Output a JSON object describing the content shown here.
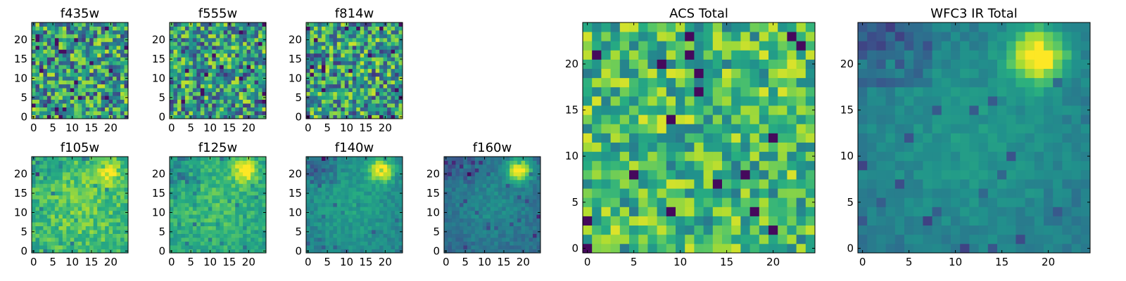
{
  "figure": {
    "description_title": ""
  },
  "chart_data": [
    {
      "type": "heatmap",
      "title": "f435w",
      "xticks": [
        "0",
        "5",
        "10",
        "15",
        "20"
      ],
      "yticks": [
        "0",
        "5",
        "10",
        "15",
        "20"
      ],
      "xlim": [
        0,
        25
      ],
      "ylim": [
        0,
        25
      ],
      "colormap": "viridis",
      "pattern": "noise",
      "seed": 11
    },
    {
      "type": "heatmap",
      "title": "f555w",
      "xticks": [
        "0",
        "5",
        "10",
        "15",
        "20"
      ],
      "yticks": [
        "0",
        "5",
        "10",
        "15",
        "20"
      ],
      "xlim": [
        0,
        25
      ],
      "ylim": [
        0,
        25
      ],
      "colormap": "viridis",
      "pattern": "noise",
      "seed": 23
    },
    {
      "type": "heatmap",
      "title": "f814w",
      "xticks": [
        "0",
        "5",
        "10",
        "15",
        "20"
      ],
      "yticks": [
        "0",
        "5",
        "10",
        "15",
        "20"
      ],
      "xlim": [
        0,
        25
      ],
      "ylim": [
        0,
        25
      ],
      "colormap": "viridis",
      "pattern": "noise",
      "seed": 37
    },
    {
      "type": "heatmap",
      "title": "f105w",
      "xticks": [
        "0",
        "5",
        "10",
        "15",
        "20"
      ],
      "yticks": [
        "0",
        "5",
        "10",
        "15",
        "20"
      ],
      "xlim": [
        0,
        25
      ],
      "ylim": [
        0,
        25
      ],
      "colormap": "viridis",
      "pattern": "source",
      "seed": 41,
      "source_strength": 0.35,
      "base": 0.62,
      "noise": 0.28
    },
    {
      "type": "heatmap",
      "title": "f125w",
      "xticks": [
        "0",
        "5",
        "10",
        "15",
        "20"
      ],
      "yticks": [
        "0",
        "5",
        "10",
        "15",
        "20"
      ],
      "xlim": [
        0,
        25
      ],
      "ylim": [
        0,
        25
      ],
      "colormap": "viridis",
      "pattern": "source",
      "seed": 53,
      "source_strength": 0.45,
      "base": 0.55,
      "noise": 0.22
    },
    {
      "type": "heatmap",
      "title": "f140w",
      "xticks": [
        "0",
        "5",
        "10",
        "15",
        "20"
      ],
      "yticks": [
        "0",
        "5",
        "10",
        "15",
        "20"
      ],
      "xlim": [
        0,
        25
      ],
      "ylim": [
        0,
        25
      ],
      "colormap": "viridis",
      "pattern": "source",
      "seed": 67,
      "source_strength": 0.6,
      "base": 0.42,
      "noise": 0.16
    },
    {
      "type": "heatmap",
      "title": "f160w",
      "xticks": [
        "0",
        "5",
        "10",
        "15",
        "20"
      ],
      "yticks": [
        "0",
        "5",
        "10",
        "15",
        "20"
      ],
      "xlim": [
        0,
        25
      ],
      "ylim": [
        0,
        25
      ],
      "colormap": "viridis",
      "pattern": "source",
      "seed": 79,
      "source_strength": 0.7,
      "base": 0.32,
      "noise": 0.14
    },
    {
      "type": "heatmap",
      "title": "ACS Total",
      "xticks": [
        "0",
        "5",
        "10",
        "15",
        "20"
      ],
      "yticks": [
        "0",
        "5",
        "10",
        "15",
        "20"
      ],
      "xlim": [
        0,
        25
      ],
      "ylim": [
        0,
        25
      ],
      "colormap": "viridis",
      "pattern": "noise_bright",
      "seed": 97
    },
    {
      "type": "heatmap",
      "title": "WFC3 IR Total",
      "xticks": [
        "0",
        "5",
        "10",
        "15",
        "20"
      ],
      "yticks": [
        "0",
        "5",
        "10",
        "15",
        "20"
      ],
      "xlim": [
        0,
        25
      ],
      "ylim": [
        0,
        25
      ],
      "colormap": "viridis",
      "pattern": "source",
      "seed": 101,
      "source_strength": 0.65,
      "base": 0.38,
      "noise": 0.12
    }
  ]
}
